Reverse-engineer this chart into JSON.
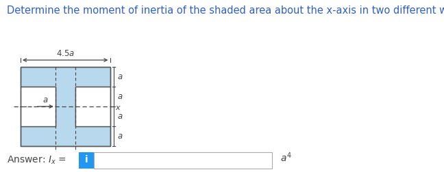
{
  "title": "Determine the moment of inertia of the shaded area about the x-axis in two different ways.",
  "title_fontsize": 10.5,
  "title_color": "#3060c0",
  "fig_bg": "#ffffff",
  "shape_fill": "#b8d8ee",
  "shape_edge": "#555555",
  "shape_lw": 1.0,
  "dim_color": "#444444",
  "dim_fontsize": 8.5,
  "box_bg": "#2196f3",
  "box_text": "i",
  "box_text_color": "#ffffff",
  "answer_color": "#444444",
  "a_scale": 0.29,
  "ox": 0.3,
  "oy": 0.38
}
